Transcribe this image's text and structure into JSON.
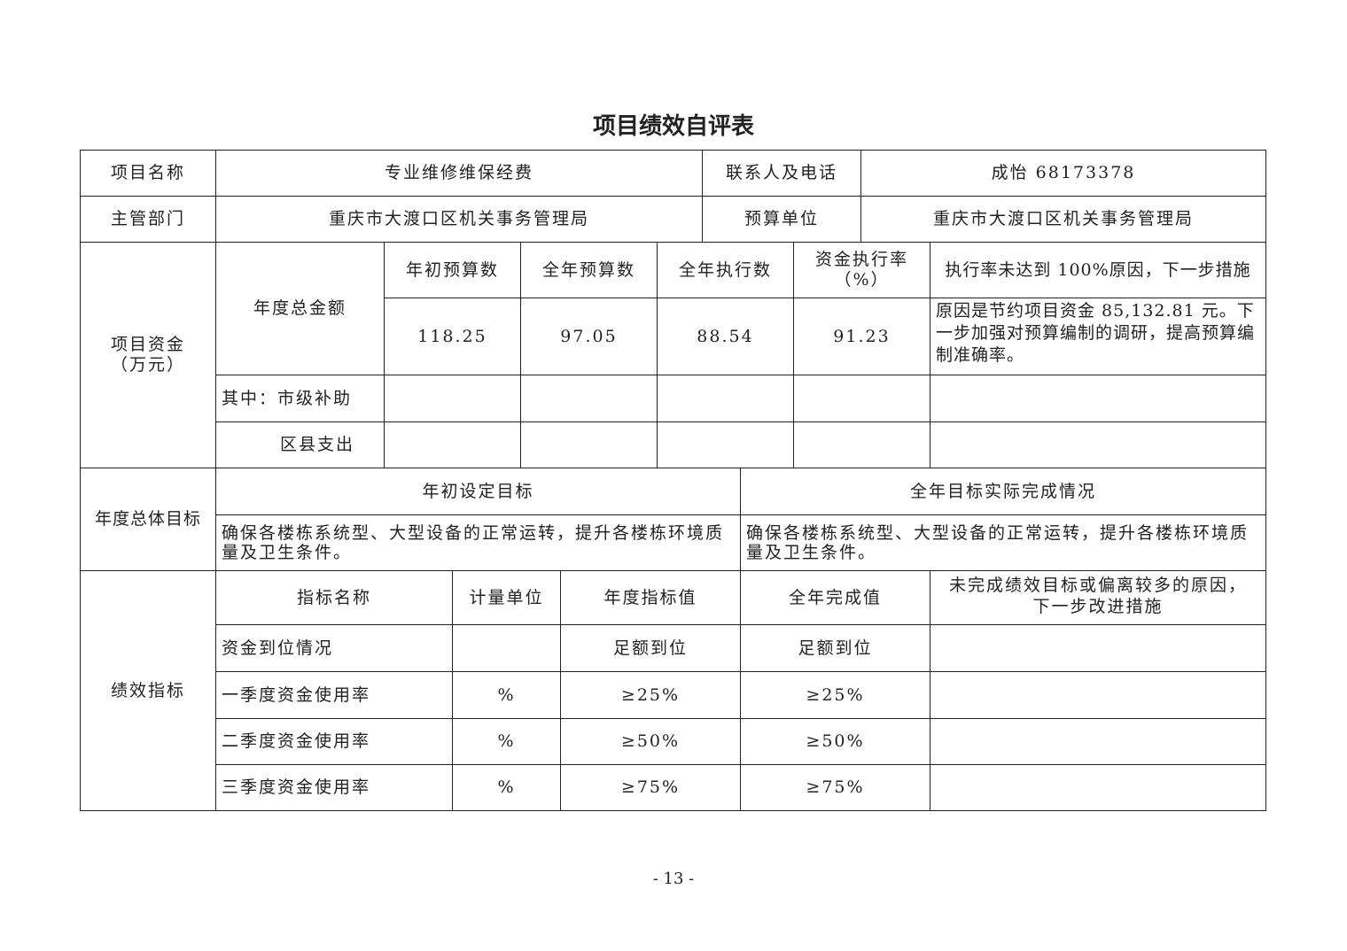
{
  "title": "项目绩效自评表",
  "row1": {
    "name_label": "项目名称",
    "name": "专业维修维保经费",
    "contact_label": "联系人及电话",
    "contact": "成怡 68173378"
  },
  "row2": {
    "dept_label": "主管部门",
    "dept": "重庆市大渡口区机关事务管理局",
    "unit_label": "预算单位",
    "unit": "重庆市大渡口区机关事务管理局"
  },
  "funds": {
    "label": "项目资金（万元）",
    "total_label": "年度总金额",
    "headers": [
      "年初预算数",
      "全年预算数",
      "全年执行数",
      "资金执行率（%）",
      "执行率未达到 100%原因，下一步措施"
    ],
    "values": [
      "118.25",
      "97.05",
      "88.54",
      "91.23",
      "原因是节约项目资金 85,132.81 元。下一步加强对预算编制的调研，提高预算编制准确率。"
    ],
    "city_label": "其中：市级补助",
    "county_label": "区县支出"
  },
  "goals": {
    "label": "年度总体目标",
    "set_label": "年初设定目标",
    "actual_label": "全年目标实际完成情况",
    "set": "确保各楼栋系统型、大型设备的正常运转，提升各楼栋环境质量及卫生条件。",
    "actual": "确保各楼栋系统型、大型设备的正常运转，提升各楼栋环境质量及卫生条件。"
  },
  "indicators": {
    "label": "绩效指标",
    "headers": [
      "指标名称",
      "计量单位",
      "年度指标值",
      "全年完成值",
      "未完成绩效目标或偏离较多的原因，下一步改进措施"
    ],
    "rows": [
      [
        "资金到位情况",
        "",
        "足额到位",
        "足额到位",
        ""
      ],
      [
        "一季度资金使用率",
        "%",
        "≥25%",
        "≥25%",
        ""
      ],
      [
        "二季度资金使用率",
        "%",
        "≥50%",
        "≥50%",
        ""
      ],
      [
        "三季度资金使用率",
        "%",
        "≥75%",
        "≥75%",
        ""
      ]
    ]
  },
  "page_number": "- 13 -"
}
